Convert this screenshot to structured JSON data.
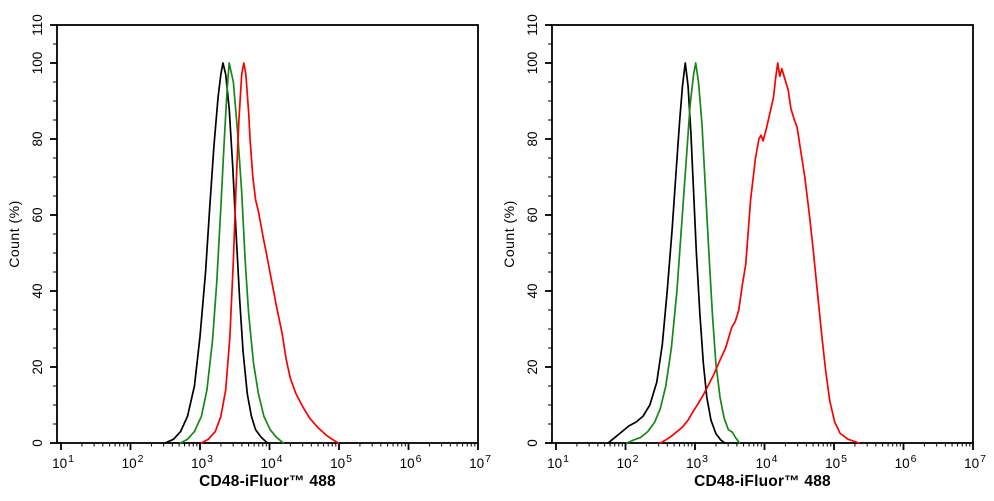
{
  "figure": {
    "background": "#ffffff",
    "axis_color": "#000000",
    "description": "Two flow cytometry overlay histograms"
  },
  "chart_data": [
    {
      "id": "left-panel",
      "type": "line",
      "title": "",
      "xlabel": "CD48-iFluor™ 488",
      "ylabel": "Count  (%)",
      "x_scale": "log10",
      "xlim_log10": [
        0.94,
        7
      ],
      "x_tick_base": "10",
      "x_tick_exponents": [
        1,
        2,
        3,
        4,
        5,
        6,
        7
      ],
      "ylim": [
        0,
        110
      ],
      "y_major_ticks": [
        0,
        20,
        40,
        60,
        80,
        100,
        110
      ],
      "y_minor_step": 5,
      "grid": false,
      "legend": "none",
      "series": [
        {
          "name": "black",
          "color": "#000000",
          "peak_x": 2150,
          "peak_y": 100,
          "points": [
            [
              2.5,
              0
            ],
            [
              2.62,
              1
            ],
            [
              2.72,
              3
            ],
            [
              2.82,
              7
            ],
            [
              2.92,
              15
            ],
            [
              3.0,
              28
            ],
            [
              3.08,
              45
            ],
            [
              3.14,
              62
            ],
            [
              3.2,
              78
            ],
            [
              3.26,
              91
            ],
            [
              3.3,
              97
            ],
            [
              3.33,
              100
            ],
            [
              3.37,
              97
            ],
            [
              3.42,
              88
            ],
            [
              3.47,
              73
            ],
            [
              3.52,
              55
            ],
            [
              3.57,
              38
            ],
            [
              3.62,
              24
            ],
            [
              3.68,
              13
            ],
            [
              3.74,
              7
            ],
            [
              3.8,
              3.5
            ],
            [
              3.88,
              1.5
            ],
            [
              3.97,
              0
            ]
          ]
        },
        {
          "name": "green",
          "color": "#178717",
          "peak_x": 2600,
          "peak_y": 100,
          "points": [
            [
              2.72,
              0
            ],
            [
              2.82,
              1
            ],
            [
              2.92,
              3
            ],
            [
              3.02,
              7
            ],
            [
              3.1,
              14
            ],
            [
              3.18,
              27
            ],
            [
              3.24,
              42
            ],
            [
              3.3,
              62
            ],
            [
              3.35,
              80
            ],
            [
              3.39,
              93
            ],
            [
              3.42,
              100
            ],
            [
              3.48,
              95
            ],
            [
              3.54,
              82
            ],
            [
              3.6,
              66
            ],
            [
              3.65,
              48
            ],
            [
              3.7,
              34
            ],
            [
              3.77,
              21
            ],
            [
              3.84,
              13
            ],
            [
              3.92,
              7
            ],
            [
              4.01,
              3.5
            ],
            [
              4.1,
              1.5
            ],
            [
              4.2,
              0
            ]
          ]
        },
        {
          "name": "red",
          "color": "#fb0000",
          "peak_x": 4100,
          "peak_y": 100,
          "points": [
            [
              3.02,
              0
            ],
            [
              3.12,
              1
            ],
            [
              3.22,
              3
            ],
            [
              3.3,
              7
            ],
            [
              3.37,
              14
            ],
            [
              3.43,
              28
            ],
            [
              3.48,
              48
            ],
            [
              3.52,
              68
            ],
            [
              3.56,
              85
            ],
            [
              3.6,
              97
            ],
            [
              3.63,
              100
            ],
            [
              3.66,
              97
            ],
            [
              3.7,
              87
            ],
            [
              3.72,
              80
            ],
            [
              3.76,
              70
            ],
            [
              3.8,
              64
            ],
            [
              3.84,
              61
            ],
            [
              3.88,
              57
            ],
            [
              3.91,
              54
            ],
            [
              3.96,
              49.5
            ],
            [
              4.01,
              44.6
            ],
            [
              4.1,
              36
            ],
            [
              4.18,
              29
            ],
            [
              4.24,
              22
            ],
            [
              4.3,
              17
            ],
            [
              4.38,
              13
            ],
            [
              4.48,
              9.5
            ],
            [
              4.58,
              6.5
            ],
            [
              4.7,
              4
            ],
            [
              4.82,
              2
            ],
            [
              4.9,
              1
            ],
            [
              4.99,
              0
            ]
          ]
        }
      ]
    },
    {
      "id": "right-panel",
      "type": "line",
      "title": "",
      "xlabel": "CD48-iFluor™ 488",
      "ylabel": "Count  (%)",
      "x_scale": "log10",
      "xlim_log10": [
        0.94,
        7
      ],
      "x_tick_base": "10",
      "x_tick_exponents": [
        1,
        2,
        3,
        4,
        5,
        6,
        7
      ],
      "ylim": [
        0,
        110
      ],
      "y_major_ticks": [
        0,
        20,
        40,
        60,
        80,
        100,
        110
      ],
      "y_minor_step": 5,
      "grid": false,
      "legend": "none",
      "series": [
        {
          "name": "black",
          "color": "#000000",
          "peak_x": 720,
          "peak_y": 100,
          "points": [
            [
              1.75,
              0
            ],
            [
              1.85,
              1.5
            ],
            [
              1.95,
              3
            ],
            [
              2.05,
              4.5
            ],
            [
              2.15,
              5.5
            ],
            [
              2.25,
              7
            ],
            [
              2.35,
              10
            ],
            [
              2.45,
              16
            ],
            [
              2.53,
              26
            ],
            [
              2.6,
              40
            ],
            [
              2.67,
              56
            ],
            [
              2.73,
              72
            ],
            [
              2.78,
              85
            ],
            [
              2.82,
              94
            ],
            [
              2.86,
              100
            ],
            [
              2.9,
              94
            ],
            [
              2.94,
              82
            ],
            [
              2.98,
              66
            ],
            [
              3.02,
              50
            ],
            [
              3.07,
              34
            ],
            [
              3.12,
              21
            ],
            [
              3.17,
              12
            ],
            [
              3.23,
              6
            ],
            [
              3.3,
              2.5
            ],
            [
              3.37,
              0.8
            ],
            [
              3.43,
              0
            ]
          ]
        },
        {
          "name": "green",
          "color": "#178717",
          "peak_x": 1020,
          "peak_y": 100,
          "points": [
            [
              2.02,
              0
            ],
            [
              2.12,
              0.8
            ],
            [
              2.22,
              1.5
            ],
            [
              2.32,
              3
            ],
            [
              2.42,
              5.5
            ],
            [
              2.5,
              9
            ],
            [
              2.58,
              15
            ],
            [
              2.66,
              25
            ],
            [
              2.74,
              40
            ],
            [
              2.81,
              58
            ],
            [
              2.88,
              76
            ],
            [
              2.93,
              89
            ],
            [
              2.98,
              97
            ],
            [
              3.01,
              100
            ],
            [
              3.05,
              95
            ],
            [
              3.1,
              84
            ],
            [
              3.15,
              67
            ],
            [
              3.2,
              50
            ],
            [
              3.25,
              34
            ],
            [
              3.3,
              21
            ],
            [
              3.36,
              12
            ],
            [
              3.42,
              6.5
            ],
            [
              3.48,
              3.5
            ],
            [
              3.54,
              2.8
            ],
            [
              3.58,
              1.5
            ],
            [
              3.64,
              0
            ]
          ]
        },
        {
          "name": "red",
          "color": "#fb0000",
          "peak_x": 15000,
          "peak_y": 100,
          "points": [
            [
              2.5,
              0
            ],
            [
              2.58,
              0.8
            ],
            [
              2.66,
              1.8
            ],
            [
              2.74,
              3
            ],
            [
              2.82,
              4.2
            ],
            [
              2.9,
              6
            ],
            [
              2.98,
              8.5
            ],
            [
              3.05,
              10.5
            ],
            [
              3.13,
              13
            ],
            [
              3.2,
              15.5
            ],
            [
              3.27,
              18
            ],
            [
              3.34,
              21
            ],
            [
              3.44,
              25
            ],
            [
              3.53,
              30.5
            ],
            [
              3.58,
              32
            ],
            [
              3.63,
              35
            ],
            [
              3.68,
              41.5
            ],
            [
              3.73,
              47
            ],
            [
              3.8,
              64
            ],
            [
              3.87,
              75
            ],
            [
              3.92,
              80
            ],
            [
              3.95,
              81
            ],
            [
              3.98,
              79.5
            ],
            [
              4.03,
              83
            ],
            [
              4.08,
              87
            ],
            [
              4.13,
              91
            ],
            [
              4.16,
              96
            ],
            [
              4.19,
              100
            ],
            [
              4.22,
              96.5
            ],
            [
              4.25,
              98.5
            ],
            [
              4.29,
              96
            ],
            [
              4.34,
              93
            ],
            [
              4.38,
              88
            ],
            [
              4.43,
              85
            ],
            [
              4.47,
              83
            ],
            [
              4.52,
              77
            ],
            [
              4.58,
              70
            ],
            [
              4.64,
              61
            ],
            [
              4.7,
              51
            ],
            [
              4.76,
              40
            ],
            [
              4.82,
              29
            ],
            [
              4.88,
              19
            ],
            [
              4.94,
              11
            ],
            [
              5.01,
              5.5
            ],
            [
              5.09,
              2.5
            ],
            [
              5.2,
              1
            ],
            [
              5.36,
              0
            ]
          ]
        }
      ]
    }
  ]
}
